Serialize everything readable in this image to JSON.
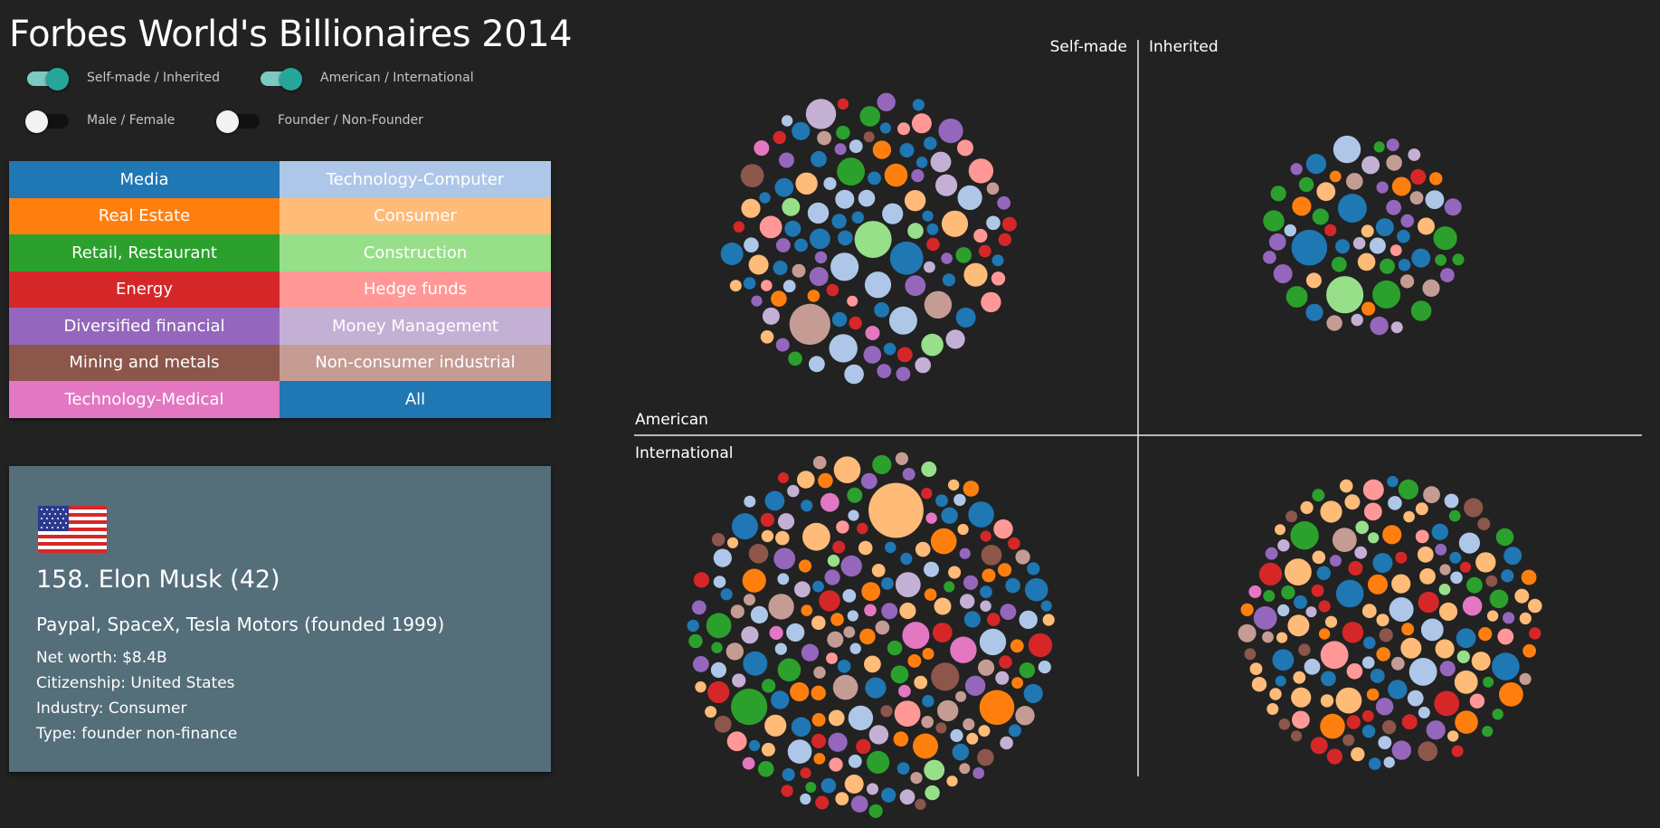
{
  "title": "Forbes World's Billionaires 2014",
  "toggles": [
    {
      "label": "Self-made / Inherited",
      "on": true
    },
    {
      "label": "American / International",
      "on": true
    },
    {
      "label": "Male / Female",
      "on": false
    },
    {
      "label": "Founder / Non-Founder",
      "on": false
    }
  ],
  "legend": [
    {
      "label": "Media",
      "color": "#1f77b4"
    },
    {
      "label": "Technology-Computer",
      "color": "#aec7e8"
    },
    {
      "label": "Real Estate",
      "color": "#ff7f0e"
    },
    {
      "label": "Consumer",
      "color": "#ffbb78"
    },
    {
      "label": "Retail, Restaurant",
      "color": "#2ca02c"
    },
    {
      "label": "Construction",
      "color": "#98df8a"
    },
    {
      "label": "Energy",
      "color": "#d62728"
    },
    {
      "label": "Hedge funds",
      "color": "#ff9896"
    },
    {
      "label": "Diversified financial",
      "color": "#9467bd"
    },
    {
      "label": "Money Management",
      "color": "#c5b0d5"
    },
    {
      "label": "Mining and metals",
      "color": "#8c564b"
    },
    {
      "label": "Non-consumer industrial",
      "color": "#c49c94"
    },
    {
      "label": "Technology-Medical",
      "color": "#e377c2"
    },
    {
      "label": "All",
      "color": "#1f77b4"
    }
  ],
  "person": {
    "flag": "us-flag",
    "name": "158. Elon Musk (42)",
    "source": "Paypal, SpaceX, Tesla Motors (founded 1999)",
    "net_worth": "Net worth: $8.4B",
    "citizenship": "Citizenship: United States",
    "industry": "Industry: Consumer",
    "type": "Type: founder non-finance"
  },
  "quadrant_labels": {
    "self_made": "Self-made",
    "inherited": "Inherited",
    "american": "American",
    "international": "International"
  },
  "chart_data": {
    "type": "scatter",
    "description_axes": [
      "Self-made / Inherited",
      "American / International"
    ],
    "groups": [
      {
        "quadrant": "Self-made American",
        "approx_count": 118,
        "dominant_industries": [
          "Technology-Computer",
          "Media",
          "Hedge funds"
        ]
      },
      {
        "quadrant": "Inherited American",
        "approx_count": 62,
        "dominant_industries": [
          "Retail, Restaurant",
          "Diversified financial",
          "Consumer"
        ]
      },
      {
        "quadrant": "Self-made International",
        "approx_count": 250,
        "dominant_industries": [
          "Media",
          "Consumer",
          "Non-consumer industrial"
        ]
      },
      {
        "quadrant": "Inherited International",
        "approx_count": 170,
        "dominant_industries": [
          "Consumer",
          "Real Estate",
          "Mining and metals"
        ]
      }
    ]
  }
}
